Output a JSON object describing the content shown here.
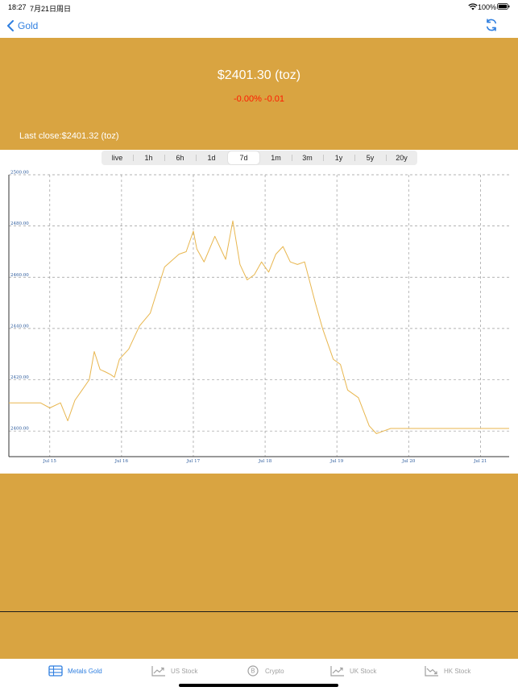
{
  "status_bar": {
    "time": "18:27",
    "date": "7月21日周日",
    "battery": "100%"
  },
  "nav": {
    "back_label": "Gold"
  },
  "header": {
    "price": "$2401.30 (toz)",
    "change": "-0.00% -0.01",
    "last_close": "Last close:$2401.32 (toz)"
  },
  "range_tabs": [
    "live",
    "1h",
    "6h",
    "1d",
    "7d",
    "1m",
    "3m",
    "1y",
    "5y",
    "20y"
  ],
  "selected_range": "7d",
  "colors": {
    "gold": "#d9a441",
    "accent": "#2f7fe0",
    "down": "#ff1a00",
    "line": "#e8b64e"
  },
  "chart_data": {
    "type": "line",
    "ylim": [
      2390,
      2500
    ],
    "y_ticks": [
      "2500.00",
      "2480.00",
      "2460.00",
      "2440.00",
      "2420.00",
      "2400.00"
    ],
    "y_tick_values": [
      2500,
      2480,
      2460,
      2440,
      2420,
      2400
    ],
    "x_ticks": [
      "Jul 15",
      "Jul 16",
      "Jul 17",
      "Jul 18",
      "Jul 19",
      "Jul 20",
      "Jul 21"
    ],
    "x_range_days": [
      14.43,
      21.4
    ],
    "grid": true,
    "series": [
      {
        "x": [
          14.43,
          14.87,
          15.0,
          15.15,
          15.25,
          15.35,
          15.45,
          15.55,
          15.62,
          15.7,
          15.78,
          15.85,
          15.9,
          15.97,
          16.1,
          16.25,
          16.4,
          16.6,
          16.8,
          16.9,
          17.0,
          17.05,
          17.15,
          17.3,
          17.45,
          17.55,
          17.65,
          17.75,
          17.85,
          17.95,
          18.05,
          18.15,
          18.25,
          18.35,
          18.45,
          18.55,
          18.7,
          18.8,
          18.95,
          19.05,
          19.15,
          19.3,
          19.45,
          19.55,
          19.65,
          19.75,
          20.0,
          21.4
        ],
        "y": [
          2411,
          2411,
          2409,
          2411,
          2404,
          2412,
          2416,
          2420,
          2431,
          2424,
          2423,
          2422,
          2421,
          2428,
          2432,
          2441,
          2446,
          2464,
          2469,
          2470,
          2478,
          2471,
          2466,
          2476,
          2467,
          2482,
          2465,
          2459,
          2461,
          2466,
          2462,
          2469,
          2472,
          2466,
          2465,
          2466,
          2450,
          2440,
          2428,
          2426,
          2416,
          2413,
          2402,
          2399,
          2400,
          2401,
          2401,
          2401
        ]
      }
    ]
  },
  "tabs": [
    {
      "label": "Metals Gold",
      "icon": "table-icon",
      "active": true
    },
    {
      "label": "US Stock",
      "icon": "trend-up-icon",
      "active": false
    },
    {
      "label": "Crypto",
      "icon": "bitcoin-icon",
      "active": false
    },
    {
      "label": "UK Stock",
      "icon": "trend-up-icon",
      "active": false
    },
    {
      "label": "HK Stock",
      "icon": "trend-down-icon",
      "active": false
    }
  ]
}
